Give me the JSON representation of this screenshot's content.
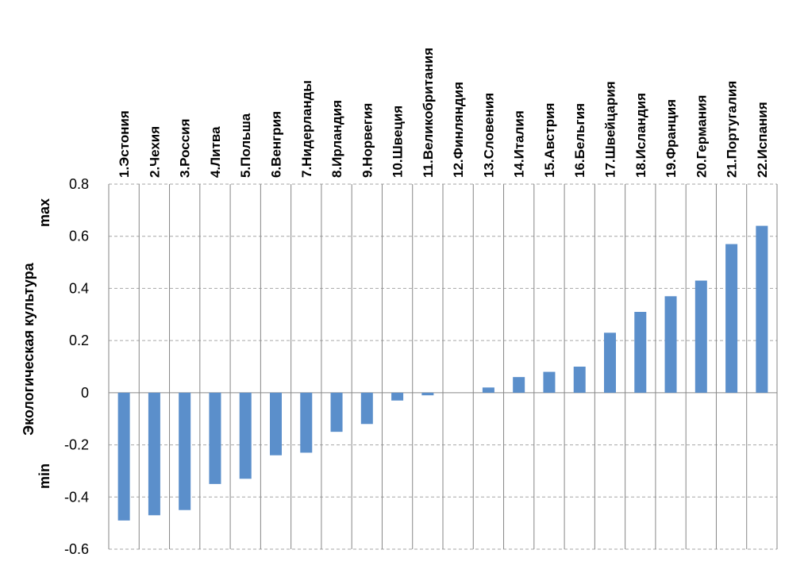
{
  "chart_data": {
    "type": "bar",
    "ylabel": "Экологическая культура",
    "ylabel_high": "max",
    "ylabel_low": "min",
    "ylim": [
      -0.6,
      0.8
    ],
    "yticks": [
      -0.6,
      -0.4,
      -0.2,
      0,
      0.2,
      0.4,
      0.6,
      0.8
    ],
    "ytick_labels": [
      "-0.6",
      "-0.4",
      "-0.2",
      "0",
      "0.2",
      "0.4",
      "0.6",
      "0.8"
    ],
    "grid": "horizontal dashed, vertical solid separators",
    "bar_color": "#5b8fcb",
    "categories": [
      "1.Эстония",
      "2.Чехия",
      "3.Россия",
      "4.Литва",
      "5.Польша",
      "6.Венгрия",
      "7.Нидерланды",
      "8.Ирландия",
      "9.Норвегия",
      "10.Швеция",
      "11.Великобритания",
      "12.Финляндия",
      "13.Словения",
      "14.Италия",
      "15.Австрия",
      "16.Бельгия",
      "17.Швейцария",
      "18.Исландия",
      "19.Франция",
      "20.Германия",
      "21.Португалия",
      "22.Испания"
    ],
    "values": [
      -0.49,
      -0.47,
      -0.45,
      -0.35,
      -0.33,
      -0.24,
      -0.23,
      -0.15,
      -0.12,
      -0.03,
      -0.01,
      0.0,
      0.02,
      0.06,
      0.08,
      0.1,
      0.23,
      0.31,
      0.37,
      0.43,
      0.57,
      0.64
    ]
  }
}
